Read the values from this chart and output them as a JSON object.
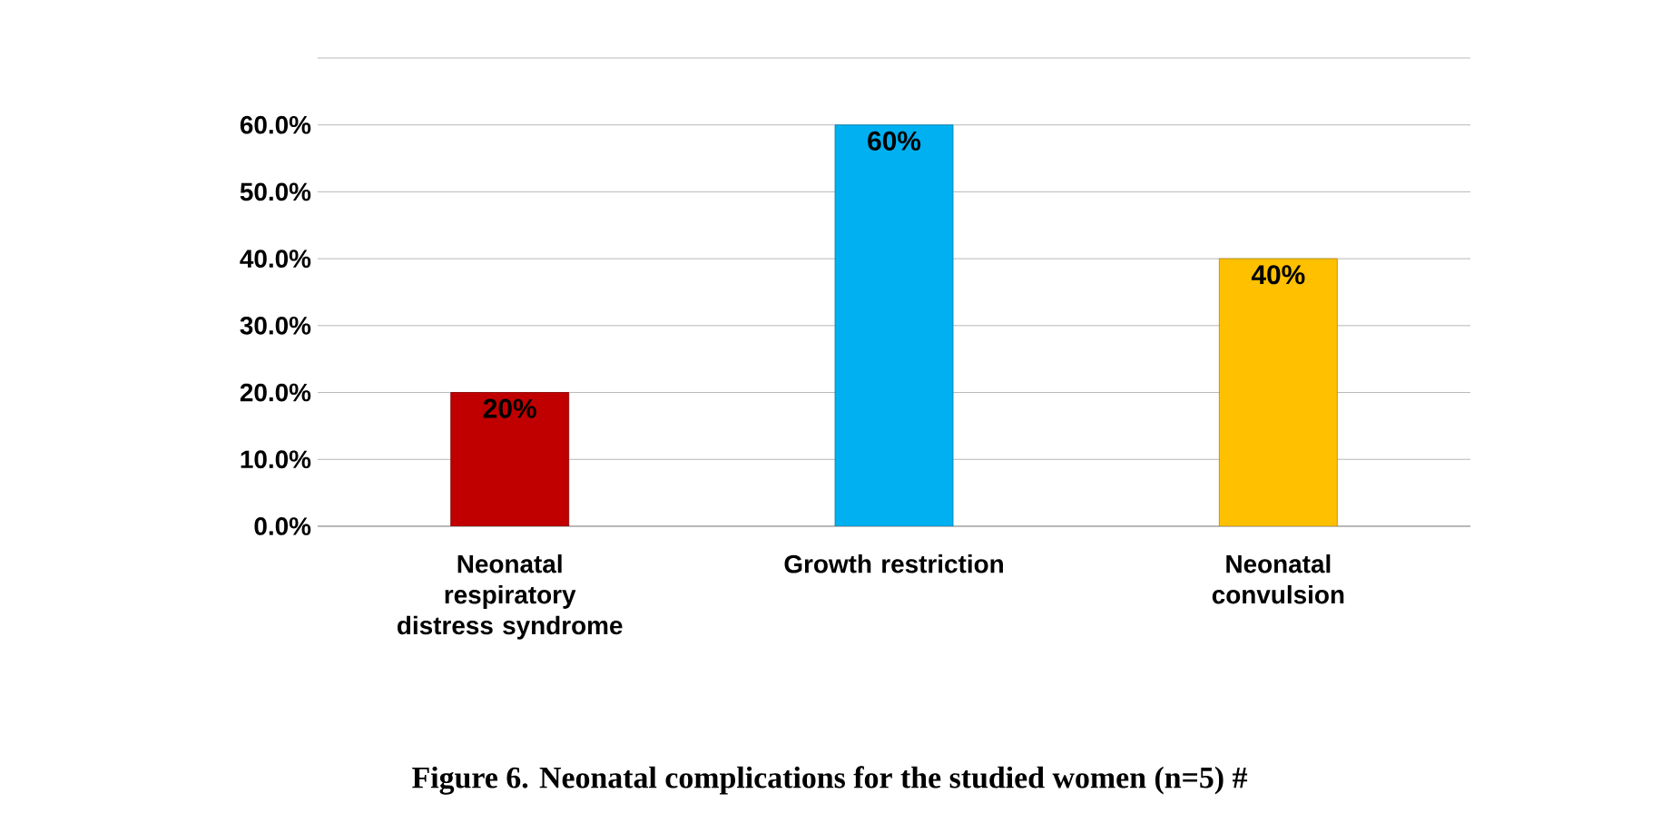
{
  "chart_data": {
    "type": "bar",
    "title": "Figure 6. Neonatal complications for the studied women (n=5) #",
    "categories": [
      "Neonatal respiratory distress syndrome",
      "Growth restriction",
      "Neonatal convulsion"
    ],
    "values": [
      20,
      60,
      40
    ],
    "colors": [
      "#c00000",
      "#00b0f0",
      "#ffc000"
    ],
    "value_labels": [
      "20%",
      "60%",
      "40%"
    ],
    "ylim": [
      0,
      70
    ],
    "yticks": [
      {
        "value": 0,
        "label": "0.0%"
      },
      {
        "value": 10,
        "label": "10.0%"
      },
      {
        "value": 20,
        "label": "20.0%"
      },
      {
        "value": 30,
        "label": "30.0%"
      },
      {
        "value": 40,
        "label": "40.0%"
      },
      {
        "value": 50,
        "label": "50.0%"
      },
      {
        "value": 60,
        "label": "60.0%"
      },
      {
        "value": 70,
        "label": null
      }
    ],
    "grid": "y"
  }
}
